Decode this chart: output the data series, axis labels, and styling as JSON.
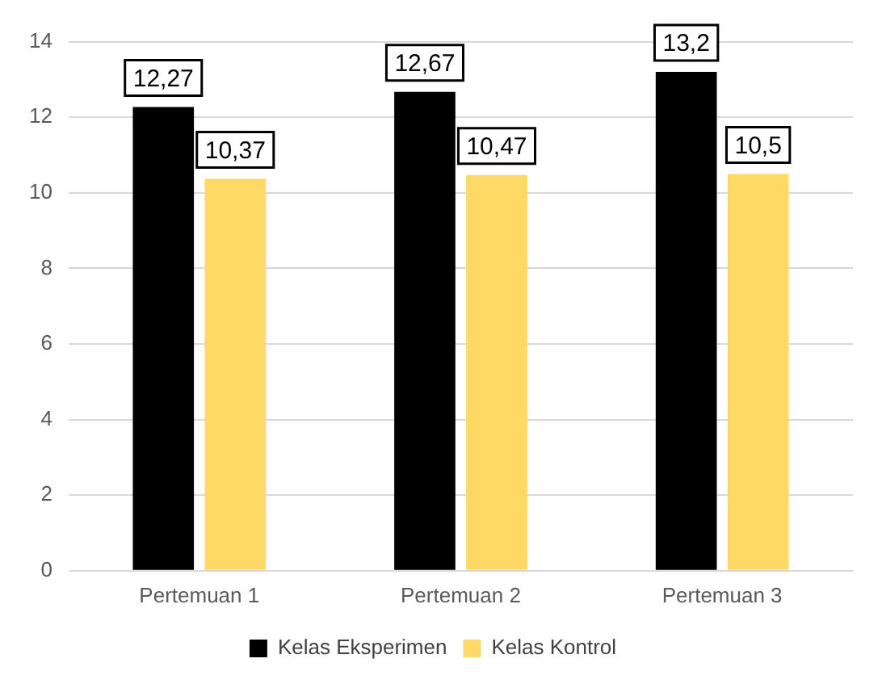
{
  "chart_data": {
    "type": "bar",
    "categories": [
      "Pertemuan 1",
      "Pertemuan 2",
      "Pertemuan 3"
    ],
    "series": [
      {
        "name": "Kelas Eksperimen",
        "color": "#000000",
        "values": [
          12.27,
          12.67,
          13.2
        ],
        "value_labels": [
          "12,27",
          "12,67",
          "13,2"
        ]
      },
      {
        "name": "Kelas Kontrol",
        "color": "#ffd966",
        "values": [
          10.37,
          10.47,
          10.5
        ],
        "value_labels": [
          "10,37",
          "10,47",
          "10,5"
        ]
      }
    ],
    "ylim": [
      0,
      14
    ],
    "yticks": [
      0,
      2,
      4,
      6,
      8,
      10,
      12,
      14
    ],
    "grid": "y",
    "legend": "bottom"
  }
}
